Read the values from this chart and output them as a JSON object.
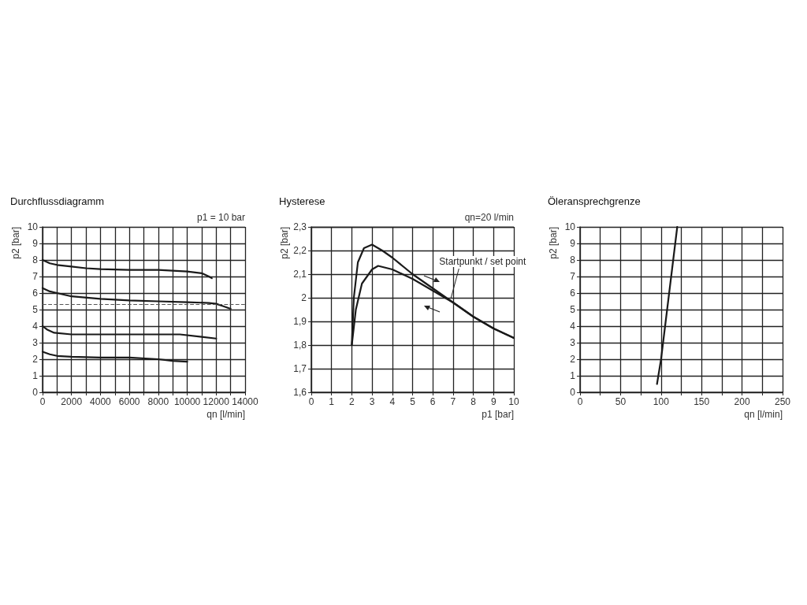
{
  "chart_data": [
    {
      "type": "line",
      "title": "Durchflussdiagramm",
      "xlabel": "qn [l/min]",
      "ylabel": "p2 [bar]",
      "annotations": [
        "p1 = 10 bar"
      ],
      "xlim": [
        0,
        14000
      ],
      "ylim": [
        0,
        10
      ],
      "xticks": [
        0,
        {
          "value": 1000,
          "label": null
        },
        2000,
        {
          "value": 3000,
          "label": null
        },
        4000,
        {
          "value": 5000,
          "label": null
        },
        6000,
        {
          "value": 7000,
          "label": null
        },
        8000,
        {
          "value": 9000,
          "label": null
        },
        10000,
        {
          "value": 11000,
          "label": null
        },
        12000,
        {
          "value": 13000,
          "label": null
        },
        14000
      ],
      "yticks": [
        0,
        1,
        2,
        3,
        4,
        5,
        6,
        7,
        8,
        9,
        10
      ],
      "grid": true,
      "marker": "none",
      "line_style": "solid",
      "ref_lines": [
        {
          "axis": "y",
          "value": 5.3,
          "color": "#555555",
          "line_style": "dashed"
        }
      ],
      "series": [
        {
          "color": "#1a1a1a",
          "x": [
            0,
            500,
            1000,
            2000,
            3000,
            4000,
            6000,
            8000,
            9000,
            10000,
            11000,
            11500,
            11700
          ],
          "values": [
            8.0,
            7.8,
            7.7,
            7.6,
            7.5,
            7.45,
            7.4,
            7.4,
            7.35,
            7.3,
            7.2,
            7.0,
            6.9
          ]
        },
        {
          "color": "#1a1a1a",
          "x": [
            0,
            500,
            1000,
            2000,
            4000,
            6000,
            8000,
            10000,
            11500,
            12000,
            12500,
            13000
          ],
          "values": [
            6.3,
            6.1,
            6.0,
            5.8,
            5.65,
            5.55,
            5.5,
            5.45,
            5.4,
            5.35,
            5.2,
            5.05
          ]
        },
        {
          "color": "#1a1a1a",
          "x": [
            0,
            300,
            800,
            2000,
            4000,
            6000,
            8000,
            9500,
            11000,
            12000
          ],
          "values": [
            4.0,
            3.8,
            3.6,
            3.5,
            3.5,
            3.5,
            3.5,
            3.5,
            3.35,
            3.25
          ]
        },
        {
          "color": "#1a1a1a",
          "x": [
            0,
            500,
            1000,
            2000,
            4000,
            6000,
            8000,
            9000,
            10000
          ],
          "values": [
            2.45,
            2.3,
            2.2,
            2.15,
            2.1,
            2.1,
            2.0,
            1.9,
            1.85
          ]
        }
      ]
    },
    {
      "type": "line",
      "title": "Hysterese",
      "xlabel": "p1 [bar]",
      "ylabel": "p2 [bar]",
      "annotations": [
        "qn=20 l/min",
        {
          "text": "Startpunkt / set point",
          "x": 6.9,
          "y": 2.0
        }
      ],
      "xlim": [
        0,
        10
      ],
      "ylim": [
        1.6,
        2.3
      ],
      "xticks": [
        0,
        1,
        2,
        3,
        4,
        5,
        6,
        7,
        8,
        9,
        10
      ],
      "yticks": [
        {
          "value": 1.6,
          "label": "1,6"
        },
        {
          "value": 1.7,
          "label": "1,7"
        },
        {
          "value": 1.8,
          "label": "1,8"
        },
        {
          "value": 1.9,
          "label": "1,9"
        },
        2,
        {
          "value": 2.1,
          "label": "2,1"
        },
        {
          "value": 2.2,
          "label": "2,2"
        },
        {
          "value": 2.3,
          "label": "2,3"
        }
      ],
      "grid": true,
      "marker": "none",
      "line_style": "solid",
      "series": [
        {
          "color": "#1a1a1a",
          "x": [
            2,
            2.1,
            2.3,
            2.6,
            3,
            3.5,
            4,
            5,
            6,
            7,
            8,
            9,
            10
          ],
          "values": [
            1.8,
            2.0,
            2.15,
            2.21,
            2.225,
            2.2,
            2.17,
            2.1,
            2.04,
            1.98,
            1.92,
            1.87,
            1.83
          ]
        },
        {
          "color": "#1a1a1a",
          "x": [
            2,
            2.2,
            2.5,
            3,
            3.3,
            4,
            5,
            6,
            7,
            8,
            9,
            10
          ],
          "values": [
            1.8,
            1.95,
            2.06,
            2.12,
            2.135,
            2.12,
            2.08,
            2.03,
            1.98,
            1.92,
            1.87,
            1.83
          ]
        }
      ]
    },
    {
      "type": "line",
      "title": "Öleransprechgrenze",
      "xlabel": "qn [l/min]",
      "ylabel": "p2 [bar]",
      "xlim": [
        0,
        250
      ],
      "ylim": [
        0,
        10
      ],
      "xticks": [
        0,
        {
          "value": 25,
          "label": null
        },
        50,
        {
          "value": 75,
          "label": null
        },
        100,
        {
          "value": 125,
          "label": null
        },
        150,
        {
          "value": 175,
          "label": null
        },
        200,
        {
          "value": 225,
          "label": null
        },
        250
      ],
      "yticks": [
        0,
        1,
        2,
        3,
        4,
        5,
        6,
        7,
        8,
        9,
        10
      ],
      "grid": true,
      "marker": "none",
      "line_style": "solid",
      "series": [
        {
          "color": "#1a1a1a",
          "x": [
            95,
            100,
            110,
            120
          ],
          "values": [
            0.5,
            2,
            6,
            10
          ]
        }
      ]
    }
  ]
}
